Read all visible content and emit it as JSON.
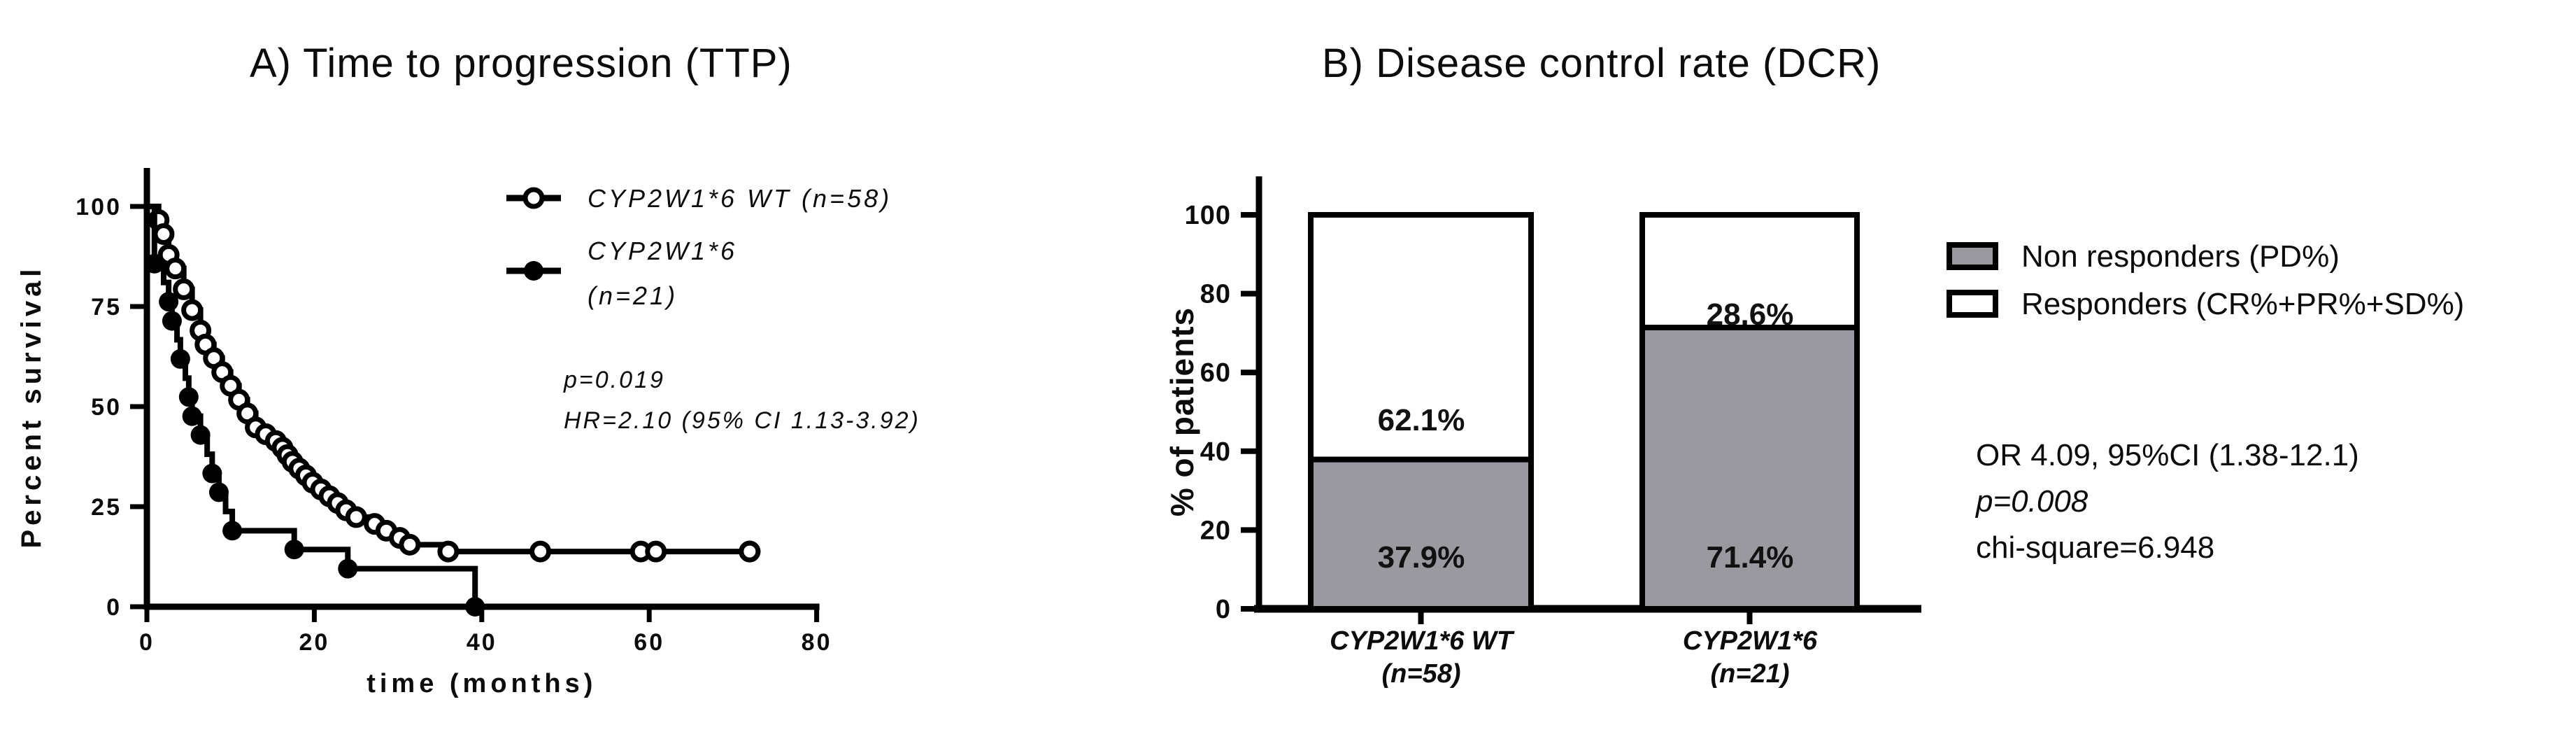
{
  "figure_colors": {
    "ink": "#000000",
    "bar_gray": "#9a99a0",
    "bar_white": "#ffffff",
    "background": "#ffffff"
  },
  "panel_a": {
    "title": "A) Time to progression (TTP)",
    "legend": {
      "wt_label": "CYP2W1*6 WT (n=58)",
      "variant_label_line1": "CYP2W1*6",
      "variant_label_line2": "(n=21)"
    },
    "stats": {
      "p_value": "p=0.019",
      "hazard_ratio": "HR=2.10 (95% CI 1.13-3.92)"
    }
  },
  "panel_b": {
    "title": "B) Disease control rate (DCR)",
    "categories": [
      {
        "line1": "CYP2W1*6 WT",
        "line2": "(n=58)"
      },
      {
        "line1": "CYP2W1*6",
        "line2": "(n=21)"
      }
    ],
    "segment_labels": {
      "bar1_gray": "37.9%",
      "bar1_white": "62.1%",
      "bar2_gray": "71.4%",
      "bar2_white": "28.6%"
    },
    "legend": {
      "non_responders": "Non responders (PD%)",
      "responders": "Responders (CR%+PR%+SD%)"
    },
    "stats": {
      "odds_ratio": "OR 4.09, 95%CI (1.38-12.1)",
      "p_value": "p=0.008",
      "chi_square": "chi-square=6.948"
    }
  },
  "chart_data": [
    {
      "type": "line",
      "subtype": "kaplan-meier-step",
      "title": "A) Time to progression (TTP)",
      "xlabel": "time (months)",
      "ylabel": "Percent survival",
      "xlim": [
        0,
        80
      ],
      "ylim": [
        0,
        100
      ],
      "xticks": [
        0,
        20,
        40,
        60,
        80
      ],
      "yticks": [
        100,
        75,
        50,
        25,
        0
      ],
      "grid": false,
      "legend_position": "upper right",
      "annotations": [
        "p=0.019",
        "HR=2.10 (95% CI 1.13-3.92)"
      ],
      "series": [
        {
          "name": "CYP2W1*6 WT (n=58)",
          "n": 58,
          "marker": "open-circle",
          "steps": [
            [
              0,
              100
            ],
            [
              1.4,
              96.6
            ],
            [
              2,
              93.1
            ],
            [
              2.6,
              87.9
            ],
            [
              3.4,
              84.5
            ],
            [
              4.4,
              79.3
            ],
            [
              5.4,
              74.1
            ],
            [
              6.4,
              69.0
            ],
            [
              7,
              65.5
            ],
            [
              8,
              62.1
            ],
            [
              9,
              58.6
            ],
            [
              10,
              55.2
            ],
            [
              11,
              51.7
            ],
            [
              12,
              48.3
            ],
            [
              13,
              44.8
            ],
            [
              14.2,
              43.1
            ],
            [
              15.4,
              41.4
            ],
            [
              16.2,
              39.7
            ],
            [
              16.8,
              37.9
            ],
            [
              17.4,
              36.2
            ],
            [
              18.2,
              34.5
            ],
            [
              19,
              32.8
            ],
            [
              19.8,
              31.0
            ],
            [
              20.8,
              29.3
            ],
            [
              21.8,
              27.6
            ],
            [
              22.8,
              25.9
            ],
            [
              23.8,
              24.1
            ],
            [
              25,
              22.4
            ],
            [
              27.2,
              20.7
            ],
            [
              28.6,
              19.0
            ],
            [
              30.2,
              17.2
            ],
            [
              31.4,
              15.5
            ],
            [
              36,
              13.8
            ],
            [
              72,
              13.8
            ]
          ],
          "censored": [
            [
              47,
              13.8
            ],
            [
              59,
              13.8
            ],
            [
              60.8,
              13.8
            ],
            [
              72,
              13.8
            ]
          ]
        },
        {
          "name": "CYP2W1*6 (n=21)",
          "n": 21,
          "marker": "filled-circle",
          "steps": [
            [
              0,
              100
            ],
            [
              0.9,
              85.7
            ],
            [
              2,
              81.0
            ],
            [
              2.6,
              76.2
            ],
            [
              3,
              71.4
            ],
            [
              3.6,
              66.7
            ],
            [
              4,
              61.9
            ],
            [
              4.6,
              57.1
            ],
            [
              5,
              52.4
            ],
            [
              5.4,
              47.6
            ],
            [
              6.4,
              42.9
            ],
            [
              7.2,
              38.1
            ],
            [
              7.8,
              33.3
            ],
            [
              8.6,
              28.6
            ],
            [
              9.4,
              23.8
            ],
            [
              10.2,
              19.0
            ],
            [
              17.6,
              14.3
            ],
            [
              24,
              9.5
            ],
            [
              39.2,
              0
            ],
            [
              40.5,
              0
            ]
          ],
          "markers_at": [
            [
              0.9,
              85.7
            ],
            [
              2.6,
              76.2
            ],
            [
              3,
              71.4
            ],
            [
              4,
              61.9
            ],
            [
              5,
              52.4
            ],
            [
              5.4,
              47.6
            ],
            [
              6.4,
              42.9
            ],
            [
              7.8,
              33.3
            ],
            [
              8.6,
              28.6
            ],
            [
              10.2,
              19.0
            ],
            [
              17.6,
              14.3
            ],
            [
              24,
              9.5
            ],
            [
              39.2,
              0
            ]
          ],
          "censored": []
        }
      ]
    },
    {
      "type": "bar",
      "subtype": "stacked-percent",
      "title": "B) Disease control rate (DCR)",
      "ylabel": "% of patients",
      "ylim": [
        0,
        100
      ],
      "yticks": [
        0,
        20,
        40,
        60,
        80,
        100
      ],
      "grid": false,
      "categories": [
        "CYP2W1*6 WT (n=58)",
        "CYP2W1*6 (n=21)"
      ],
      "series": [
        {
          "name": "Non responders (PD%)",
          "color": "#9a99a0",
          "values": [
            37.9,
            71.4
          ]
        },
        {
          "name": "Responders (CR%+PR%+SD%)",
          "color": "#ffffff",
          "values": [
            62.1,
            28.6
          ]
        }
      ],
      "annotations": [
        "OR 4.09, 95%CI (1.38-12.1)",
        "p=0.008",
        "chi-square=6.948"
      ]
    }
  ]
}
